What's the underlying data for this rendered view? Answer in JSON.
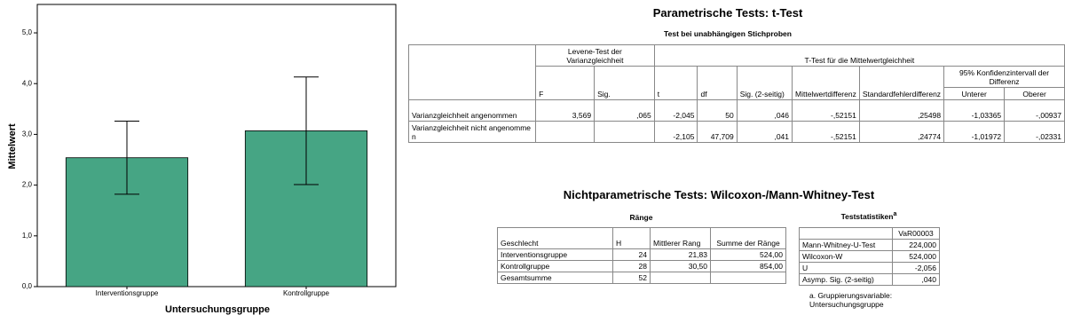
{
  "chart_data": {
    "type": "bar",
    "categories": [
      "Interventionsgruppe",
      "Kontrollgruppe"
    ],
    "values": [
      2.54,
      3.07
    ],
    "errors": [
      0.72,
      1.06
    ],
    "color": "#46a584",
    "x_label": "Untersuchungsgruppe",
    "y_label": "Mittelwert",
    "ylim": [
      0,
      5.56
    ],
    "yticks": [
      {
        "value": 0,
        "label": "0,0"
      },
      {
        "value": 1,
        "label": "1,0"
      },
      {
        "value": 2,
        "label": "2,0"
      },
      {
        "value": 3,
        "label": "3,0"
      },
      {
        "value": 4,
        "label": "4,0"
      },
      {
        "value": 5,
        "label": "5,0"
      }
    ]
  },
  "ttest": {
    "title": "Parametrische Tests: t-Test",
    "subtitle": "Test bei unabhängigen Stichproben",
    "groups": [
      "Levene-Test der Varianzgleichheit",
      "T-Test für die Mittelwertgleichheit"
    ],
    "columns": [
      "F",
      "Sig.",
      "t",
      "df",
      "Sig. (2-seitig)",
      "Mittelwertdifferenz",
      "Standardfehlerdifferenz",
      "95% Konfidenzintervall der Differenz"
    ],
    "ci_columns": [
      "Unterer",
      "Oberer"
    ],
    "rows": [
      [
        "Varianzgleichheit angenommen",
        "3,569",
        ",065",
        "-2,045",
        "50",
        ",046",
        "-,52151",
        ",25498",
        "-1,03365",
        "-,00937"
      ],
      [
        "Varianzgleichheit nicht angenommen",
        null,
        null,
        "-2,105",
        "47,709",
        ",041",
        "-,52151",
        ",24774",
        "-1,01972",
        "-,02331"
      ]
    ]
  },
  "nonparam": {
    "title": "Nichtparametrische Tests: Wilcoxon-/Mann-Whitney-Test",
    "ranks": {
      "title": "Ränge",
      "columns": [
        "Geschlecht",
        "H",
        "Mittlerer Rang",
        "Summe der Ränge"
      ],
      "rows": [
        [
          "Interventionsgruppe",
          "24",
          "21,83",
          "524,00"
        ],
        [
          "Kontrollgruppe",
          "28",
          "30,50",
          "854,00"
        ],
        [
          "Gesamtsumme",
          "52",
          null,
          null
        ]
      ]
    },
    "stats": {
      "title": "Teststatistiken",
      "title_note": "a",
      "column": "VaR00003",
      "rows": [
        [
          "Mann-Whitney-U-Test",
          "224,000"
        ],
        [
          "Wilcoxon-W",
          "524,000"
        ],
        [
          "U",
          "-2,056"
        ],
        [
          "Asymp. Sig. (2-seitig)",
          ",040"
        ]
      ],
      "footnote": "a. Gruppierungsvariable: Untersuchungsgruppe"
    }
  }
}
